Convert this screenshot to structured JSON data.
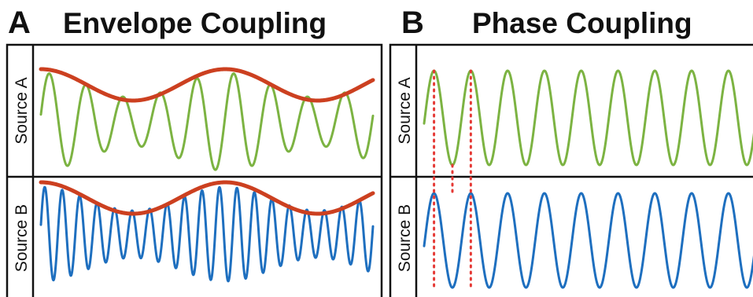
{
  "panels": [
    {
      "letter": "A",
      "title": "Envelope Coupling",
      "rows": [
        {
          "label": "Source A"
        },
        {
          "label": "Source B"
        }
      ]
    },
    {
      "letter": "B",
      "title": "Phase Coupling",
      "rows": [
        {
          "label": "Source A"
        },
        {
          "label": "Source B"
        }
      ]
    }
  ],
  "colors": {
    "source_a_signal": "#7cb342",
    "source_b_signal": "#1e6fbf",
    "envelope": "#cc4020",
    "phase_marker": "#e53935",
    "frame": "#111111"
  },
  "signals": {
    "envelope_coupling": {
      "source_a_cycles": 9,
      "source_b_cycles": 19,
      "envelope_cycles": 1.8,
      "envelope_depth": 0.5
    },
    "phase_coupling": {
      "source_a_cycles": 9,
      "source_b_cycles": 9,
      "phase_markers": 3
    }
  }
}
